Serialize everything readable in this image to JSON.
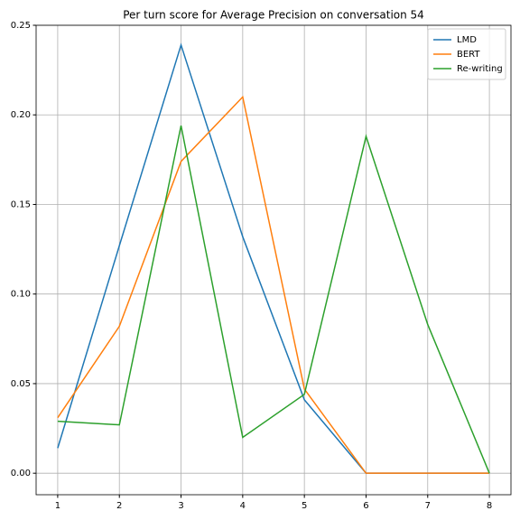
{
  "chart_data": {
    "type": "line",
    "title": "Per turn score for Average Precision on conversation 54",
    "x": [
      1,
      2,
      3,
      4,
      5,
      6,
      7,
      8
    ],
    "series": [
      {
        "name": "LMD",
        "color": "#1f77b4",
        "values": [
          0.014,
          0.127,
          0.239,
          0.132,
          0.041,
          0,
          0,
          0
        ]
      },
      {
        "name": "BERT",
        "color": "#ff7f0e",
        "values": [
          0.031,
          0.082,
          0.174,
          0.21,
          0.047,
          0,
          0,
          0
        ]
      },
      {
        "name": "Re-writing",
        "color": "#2ca02c",
        "values": [
          0.029,
          0.027,
          0.194,
          0.02,
          0.044,
          0.188,
          0.083,
          0
        ]
      }
    ],
    "xlim": [
      0.65,
      8.35
    ],
    "xticks": [
      1,
      2,
      3,
      4,
      5,
      6,
      7,
      8
    ],
    "ylim": [
      -0.012,
      0.25
    ],
    "yticks": [
      {
        "value": 0,
        "label": "0.00"
      },
      {
        "value": 0.05,
        "label": "0.05"
      },
      {
        "value": 0.1,
        "label": "0.10"
      },
      {
        "value": 0.15,
        "label": "0.15"
      },
      {
        "value": 0.2,
        "label": "0.20"
      },
      {
        "value": 0.25,
        "label": "0.25"
      }
    ],
    "grid": true,
    "legend": "upper right"
  }
}
